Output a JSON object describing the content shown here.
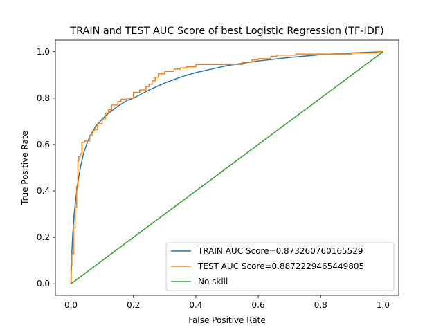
{
  "chart_data": {
    "type": "line",
    "title": "TRAIN and TEST AUC Score of best Logistic Regression (TF-IDF)",
    "xlabel": "False Positive Rate",
    "ylabel": "True Positive Rate",
    "xlim": [
      -0.05,
      1.05
    ],
    "ylim": [
      -0.05,
      1.05
    ],
    "xticks": [
      "0.0",
      "0.2",
      "0.4",
      "0.6",
      "0.8",
      "1.0"
    ],
    "yticks": [
      "0.0",
      "0.2",
      "0.4",
      "0.6",
      "0.8",
      "1.0"
    ],
    "grid": false,
    "legend_position": "lower-right",
    "series": [
      {
        "name": "TRAIN AUC Score=0.873260760165529",
        "color": "#1f77b4",
        "step": false,
        "x": [
          0.0,
          0.002,
          0.005,
          0.01,
          0.02,
          0.03,
          0.04,
          0.05,
          0.06,
          0.08,
          0.1,
          0.12,
          0.15,
          0.18,
          0.2,
          0.25,
          0.3,
          0.35,
          0.4,
          0.45,
          0.5,
          0.6,
          0.7,
          0.8,
          0.9,
          1.0
        ],
        "y": [
          0.0,
          0.11,
          0.2,
          0.3,
          0.42,
          0.5,
          0.56,
          0.6,
          0.635,
          0.68,
          0.71,
          0.735,
          0.765,
          0.79,
          0.8,
          0.835,
          0.865,
          0.89,
          0.91,
          0.925,
          0.94,
          0.96,
          0.975,
          0.987,
          0.995,
          1.0
        ]
      },
      {
        "name": "TEST AUC Score=0.8872229465449805",
        "color": "#ff7f0e",
        "step": true,
        "x": [
          0.0,
          0.0,
          0.003,
          0.003,
          0.008,
          0.008,
          0.013,
          0.013,
          0.018,
          0.018,
          0.022,
          0.022,
          0.025,
          0.025,
          0.03,
          0.03,
          0.035,
          0.035,
          0.045,
          0.045,
          0.06,
          0.06,
          0.07,
          0.07,
          0.075,
          0.075,
          0.085,
          0.085,
          0.1,
          0.1,
          0.11,
          0.11,
          0.12,
          0.12,
          0.13,
          0.13,
          0.15,
          0.15,
          0.16,
          0.16,
          0.18,
          0.18,
          0.2,
          0.2,
          0.22,
          0.22,
          0.24,
          0.24,
          0.25,
          0.25,
          0.26,
          0.26,
          0.27,
          0.27,
          0.28,
          0.28,
          0.3,
          0.3,
          0.33,
          0.33,
          0.35,
          0.35,
          0.37,
          0.37,
          0.4,
          0.4,
          0.43,
          0.43,
          0.55,
          0.55,
          0.58,
          0.58,
          0.6,
          0.6,
          0.64,
          0.64,
          0.66,
          0.66,
          0.72,
          0.72,
          0.9,
          0.9,
          0.98,
          0.98,
          1.0
        ],
        "y": [
          0.0,
          0.08,
          0.08,
          0.13,
          0.13,
          0.24,
          0.24,
          0.33,
          0.33,
          0.42,
          0.42,
          0.53,
          0.53,
          0.55,
          0.55,
          0.56,
          0.56,
          0.61,
          0.61,
          0.615,
          0.615,
          0.64,
          0.64,
          0.66,
          0.66,
          0.665,
          0.665,
          0.69,
          0.69,
          0.71,
          0.71,
          0.735,
          0.735,
          0.75,
          0.75,
          0.77,
          0.77,
          0.785,
          0.785,
          0.795,
          0.795,
          0.8,
          0.8,
          0.825,
          0.825,
          0.835,
          0.835,
          0.85,
          0.85,
          0.86,
          0.86,
          0.875,
          0.875,
          0.89,
          0.89,
          0.905,
          0.905,
          0.915,
          0.915,
          0.925,
          0.925,
          0.93,
          0.93,
          0.935,
          0.935,
          0.945,
          0.945,
          0.945,
          0.945,
          0.955,
          0.955,
          0.965,
          0.965,
          0.97,
          0.97,
          0.98,
          0.98,
          0.985,
          0.985,
          0.99,
          0.99,
          0.995,
          0.995,
          1.0,
          1.0
        ]
      },
      {
        "name": "No skill",
        "color": "#2ca02c",
        "step": false,
        "x": [
          0.0,
          1.0
        ],
        "y": [
          0.0,
          1.0
        ]
      }
    ]
  }
}
